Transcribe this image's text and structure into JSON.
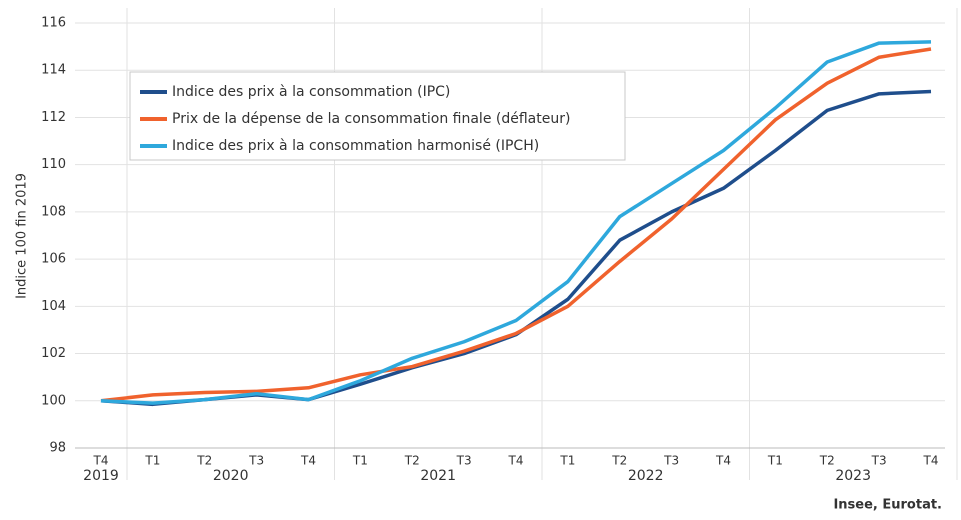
{
  "chart_data": {
    "type": "line",
    "y_label": "Indice 100 fin 2019",
    "source": "Insee, Eurotat.",
    "categories": [
      "T4",
      "T1",
      "T2",
      "T3",
      "T4",
      "T1",
      "T2",
      "T3",
      "T4",
      "T1",
      "T2",
      "T3",
      "T4",
      "T1",
      "T2",
      "T3",
      "T4"
    ],
    "category_groups": [
      "2019",
      "2020",
      "2021",
      "2022",
      "2023"
    ],
    "ylim": [
      98,
      116
    ],
    "yticks": [
      98,
      100,
      102,
      104,
      106,
      108,
      110,
      112,
      114,
      116
    ],
    "grid": true,
    "series": [
      {
        "name": "Indice des prix à la consommation (IPC)",
        "color": "#1f4e8c",
        "values": [
          100,
          99.85,
          100.05,
          100.25,
          100.05,
          100.7,
          101.4,
          102.0,
          102.8,
          104.3,
          106.8,
          108.0,
          109.0,
          110.6,
          112.3,
          113.0,
          113.1
        ]
      },
      {
        "name": "Prix de la dépense de la consommation finale (déflateur)",
        "color": "#f0622d",
        "values": [
          100,
          100.25,
          100.35,
          100.4,
          100.55,
          101.1,
          101.45,
          102.1,
          102.85,
          104.0,
          105.9,
          107.7,
          109.8,
          111.9,
          113.45,
          114.55,
          114.9
        ]
      },
      {
        "name": "Indice des prix à la consommation harmonisé (IPCH)",
        "color": "#2ea8dc",
        "values": [
          100,
          99.9,
          100.05,
          100.3,
          100.05,
          100.85,
          101.8,
          102.5,
          103.4,
          105.05,
          107.8,
          109.2,
          110.6,
          112.4,
          114.35,
          115.15,
          115.2
        ]
      }
    ]
  }
}
